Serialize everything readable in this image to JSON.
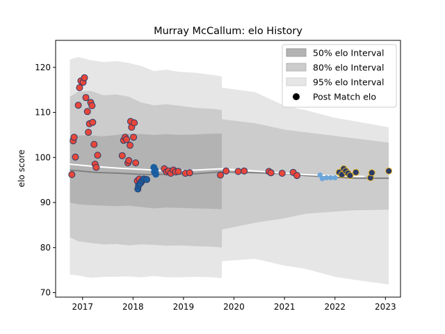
{
  "chart_data": {
    "type": "scatter",
    "title": "Murray McCallum: elo History",
    "xlabel": "",
    "ylabel": "elo score",
    "xlim": [
      "2016-06-20",
      "2023-04-20"
    ],
    "ylim": [
      69,
      126
    ],
    "x_ticks": [
      "2017",
      "2018",
      "2019",
      "2020",
      "2021",
      "2022",
      "2023"
    ],
    "y_ticks": [
      70,
      80,
      90,
      100,
      110,
      120
    ],
    "grid": false,
    "legend": {
      "placement": "top-right",
      "entries": [
        "50% elo Interval",
        "80% elo Interval",
        "95% elo Interval",
        "Post Match elo"
      ]
    },
    "colors": {
      "band50": "#b3b3b3",
      "band80": "#cccccc",
      "band95": "#e6e6e6",
      "median_line": "#808080",
      "mean_line": "#ffffff",
      "marker_red": "#e8473a",
      "marker_navy_edge": "#2b3a67",
      "marker_blue": "#1b5fa0",
      "marker_light_blue": "#6ba6da",
      "marker_gold_edge": "#e6b422"
    },
    "bands": {
      "x": [
        "2016-10-01",
        "2016-12-01",
        "2017-03-01",
        "2017-06-01",
        "2017-09-01",
        "2017-12-01",
        "2018-03-01",
        "2018-06-01",
        "2018-09-01",
        "2018-12-01",
        "2019-04-01",
        "2019-08-01",
        "2019-10-05",
        "2019-10-06",
        "2020-06-01",
        "2021-01-01",
        "2021-06-01",
        "2022-01-01",
        "2022-06-01",
        "2023-01-25"
      ],
      "p95_upper": [
        121.8,
        122.3,
        121.6,
        121.2,
        121.4,
        121.0,
        120.3,
        119.2,
        119.5,
        119.0,
        118.8,
        118.3,
        118.0,
        115.5,
        114.5,
        111.5,
        110.5,
        108.8,
        108.0,
        106.7
      ],
      "p80_upper": [
        113.5,
        114.6,
        114.8,
        113.8,
        114.0,
        113.5,
        112.2,
        111.6,
        111.8,
        111.5,
        111.0,
        110.8,
        110.5,
        108.5,
        107.6,
        106.2,
        105.6,
        104.8,
        104.2,
        103.3
      ],
      "p50_upper": [
        104.6,
        104.9,
        104.9,
        104.7,
        105.0,
        105.3,
        105.2,
        105.0,
        105.2,
        105.0,
        105.1,
        105.3,
        105.3,
        null,
        null,
        null,
        null,
        null,
        null,
        null
      ],
      "p50_lower": [
        90.0,
        89.6,
        89.4,
        89.3,
        89.2,
        89.3,
        89.0,
        88.7,
        88.9,
        88.8,
        88.7,
        88.6,
        88.5,
        null,
        null,
        null,
        null,
        null,
        null,
        null
      ],
      "p80_lower": [
        82.3,
        81.4,
        81.0,
        80.7,
        80.8,
        80.5,
        80.7,
        80.6,
        80.4,
        80.5,
        80.3,
        80.2,
        80.0,
        84.0,
        85.5,
        86.5,
        87.5,
        88.0,
        88.3,
        88.4
      ],
      "p95_lower": [
        74.0,
        73.8,
        73.3,
        73.5,
        73.5,
        73.6,
        73.4,
        73.7,
        73.4,
        73.4,
        73.5,
        73.4,
        73.2,
        77.0,
        77.5,
        76.0,
        75.3,
        73.5,
        72.8,
        71.8
      ]
    },
    "lines": {
      "median": {
        "x": [
          "2016-10-01",
          "2017-04-01",
          "2017-10-01",
          "2018-04-01",
          "2018-10-01",
          "2019-04-01",
          "2019-10-01",
          "2020-06-01",
          "2021-01-01",
          "2021-06-01",
          "2022-01-01",
          "2022-06-01",
          "2023-01-25"
        ],
        "y": [
          97.2,
          96.7,
          96.5,
          96.2,
          96.3,
          96.4,
          96.8,
          96.6,
          96.4,
          96.0,
          95.6,
          95.4,
          95.4
        ]
      },
      "mean": {
        "x": [
          "2016-10-01",
          "2017-04-01",
          "2017-10-01",
          "2018-04-01",
          "2018-10-01",
          "2019-04-01",
          "2019-10-01",
          "2020-06-01",
          "2021-01-01",
          "2021-06-01",
          "2022-01-01",
          "2022-06-01",
          "2022-08-01"
        ],
        "y": [
          98.5,
          98.0,
          97.6,
          97.3,
          97.0,
          97.2,
          97.5,
          97.0,
          96.5,
          96.2,
          95.9,
          95.8,
          95.8
        ]
      }
    },
    "series": [
      {
        "style": "red",
        "x": [
          "2016-10-15",
          "2016-10-25",
          "2016-11-01",
          "2016-11-10",
          "2016-12-01",
          "2016-12-10",
          "2016-12-20",
          "2017-01-05",
          "2017-01-15",
          "2017-01-25",
          "2017-02-05",
          "2017-02-12",
          "2017-02-20",
          "2017-03-01",
          "2017-03-10",
          "2017-03-15",
          "2017-03-25",
          "2017-04-01",
          "2017-04-10",
          "2017-04-20",
          "2017-10-15",
          "2017-10-25",
          "2017-11-05",
          "2017-11-15",
          "2017-11-25",
          "2017-12-01",
          "2017-12-10",
          "2017-12-15",
          "2017-12-22",
          "2018-01-05",
          "2018-01-10",
          "2018-01-20",
          "2018-02-01",
          "2018-02-15",
          "2018-03-01"
        ],
        "y": [
          96.2,
          103.7,
          104.5,
          100.1,
          111.6,
          115.5,
          117.0,
          116.7,
          117.7,
          113.3,
          110.2,
          105.6,
          107.5,
          112.2,
          111.5,
          107.8,
          102.9,
          98.5,
          97.8,
          100.5,
          100.4,
          103.8,
          104.5,
          104.0,
          98.8,
          99.3,
          102.7,
          108.0,
          106.7,
          104.5,
          107.7,
          98.8,
          94.8,
          95.2,
          94.5
        ]
      },
      {
        "style": "navy",
        "x": [
          "2018-02-05",
          "2018-02-10",
          "2018-02-20",
          "2018-03-05",
          "2018-03-20",
          "2018-04-10"
        ],
        "y": [
          93.0,
          93.8,
          94.2,
          94.8,
          95.2,
          95.1
        ]
      },
      {
        "style": "blue",
        "x": [
          "2018-06-01",
          "2018-06-05",
          "2018-06-10",
          "2018-06-15"
        ],
        "y": [
          97.8,
          96.8,
          97.2,
          96.3
        ]
      },
      {
        "style": "red",
        "x": [
          "2018-08-15",
          "2018-09-01",
          "2018-09-15",
          "2018-10-01",
          "2018-10-20",
          "2018-11-05",
          "2018-11-25",
          "2019-01-15",
          "2019-02-15",
          "2019-09-25",
          "2019-11-05",
          "2020-02-01",
          "2020-03-15",
          "2020-09-10",
          "2020-09-25",
          "2020-12-15",
          "2021-03-05",
          "2021-04-01"
        ],
        "y": [
          97.5,
          96.8,
          97.0,
          96.5,
          97.2,
          96.8,
          96.9,
          96.5,
          96.6,
          96.1,
          97.0,
          96.9,
          97.0,
          96.9,
          96.6,
          96.5,
          96.7,
          96.0
        ]
      },
      {
        "style": "light_blue",
        "x": [
          "2021-09-15",
          "2021-10-01",
          "2021-11-01",
          "2021-12-01",
          "2022-01-01"
        ],
        "y": [
          96.1,
          95.3,
          95.5,
          95.5,
          95.5
        ]
      },
      {
        "style": "gold",
        "x": [
          "2022-02-01",
          "2022-02-20",
          "2022-03-05",
          "2022-03-20",
          "2022-04-05",
          "2022-04-20",
          "2022-06-01",
          "2022-09-15",
          "2022-09-25",
          "2023-01-25"
        ],
        "y": [
          96.7,
          96.2,
          97.5,
          97.0,
          96.5,
          96.0,
          96.7,
          95.5,
          96.6,
          97.0
        ]
      }
    ]
  }
}
